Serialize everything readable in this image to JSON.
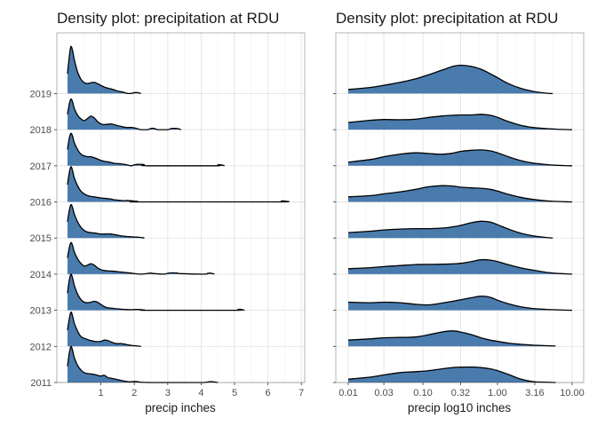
{
  "chart_data": [
    {
      "type": "ridgeline",
      "title": "Density plot: precipitation at RDU",
      "xlabel": "precip inches",
      "ylabel": "",
      "x_scale": "linear",
      "xlim": [
        0,
        7
      ],
      "x_ticks": [
        1,
        2,
        3,
        4,
        5,
        6,
        7
      ],
      "x_tick_labels": [
        "1",
        "2",
        "3",
        "4",
        "5",
        "6",
        "7"
      ],
      "categories": [
        "2011",
        "2012",
        "2013",
        "2014",
        "2015",
        "2016",
        "2017",
        "2018",
        "2019"
      ],
      "fill_color": "#4477aa",
      "grid": true,
      "series": [
        {
          "name": "2011",
          "x": [
            0,
            0.05,
            0.1,
            0.15,
            0.2,
            0.3,
            0.4,
            0.5,
            0.6,
            0.7,
            0.8,
            0.9,
            1.0,
            1.1,
            1.2,
            1.3,
            1.4,
            1.5,
            1.6,
            1.7,
            1.8,
            1.9,
            2.0,
            2.1,
            2.2,
            2.5,
            3.0,
            4.0,
            4.2,
            4.3,
            4.4,
            4.5
          ],
          "density": [
            0.9,
            1.6,
            2.0,
            1.8,
            1.4,
            0.95,
            0.7,
            0.55,
            0.5,
            0.48,
            0.45,
            0.4,
            0.36,
            0.4,
            0.28,
            0.24,
            0.2,
            0.16,
            0.12,
            0.08,
            0.05,
            0.04,
            0.06,
            0.05,
            0.02,
            0.0,
            0.0,
            0.0,
            0.03,
            0.05,
            0.03,
            0.0
          ]
        },
        {
          "name": "2012",
          "x": [
            0,
            0.05,
            0.1,
            0.15,
            0.2,
            0.3,
            0.4,
            0.5,
            0.6,
            0.7,
            0.8,
            0.9,
            1.0,
            1.1,
            1.2,
            1.3,
            1.4,
            1.5,
            1.6,
            1.7,
            1.8,
            1.9,
            2.0,
            2.1,
            2.2
          ],
          "density": [
            0.9,
            1.5,
            1.9,
            1.7,
            1.3,
            0.85,
            0.55,
            0.45,
            0.38,
            0.32,
            0.28,
            0.26,
            0.28,
            0.35,
            0.33,
            0.25,
            0.18,
            0.15,
            0.16,
            0.13,
            0.09,
            0.06,
            0.04,
            0.02,
            0.0
          ]
        },
        {
          "name": "2013",
          "x": [
            0,
            0.05,
            0.1,
            0.15,
            0.2,
            0.3,
            0.4,
            0.5,
            0.6,
            0.7,
            0.8,
            0.9,
            1.0,
            1.1,
            1.2,
            1.3,
            1.4,
            1.5,
            1.6,
            1.7,
            1.8,
            1.9,
            2.0,
            2.1,
            2.2,
            2.3,
            2.4,
            5.0,
            5.1,
            5.2,
            5.3
          ],
          "density": [
            0.95,
            1.65,
            2.0,
            1.8,
            1.4,
            0.9,
            0.6,
            0.45,
            0.42,
            0.45,
            0.5,
            0.45,
            0.32,
            0.2,
            0.14,
            0.12,
            0.1,
            0.08,
            0.06,
            0.05,
            0.04,
            0.03,
            0.04,
            0.05,
            0.03,
            0.02,
            0.0,
            0.0,
            0.05,
            0.05,
            0.0
          ]
        },
        {
          "name": "2014",
          "x": [
            0,
            0.05,
            0.1,
            0.15,
            0.2,
            0.3,
            0.4,
            0.5,
            0.6,
            0.7,
            0.8,
            0.9,
            1.0,
            1.1,
            1.2,
            1.3,
            1.4,
            1.5,
            1.6,
            1.7,
            1.8,
            1.9,
            2.0,
            2.2,
            2.4,
            2.5,
            2.6,
            2.9,
            3.0,
            3.1,
            3.2,
            3.3,
            3.4,
            4.1,
            4.2,
            4.3,
            4.4
          ],
          "density": [
            0.9,
            1.45,
            1.75,
            1.6,
            1.25,
            0.85,
            0.6,
            0.45,
            0.5,
            0.58,
            0.5,
            0.35,
            0.25,
            0.2,
            0.18,
            0.17,
            0.16,
            0.14,
            0.12,
            0.1,
            0.08,
            0.06,
            0.03,
            0.0,
            0.04,
            0.06,
            0.03,
            0.0,
            0.05,
            0.07,
            0.07,
            0.06,
            0.03,
            0.0,
            0.05,
            0.05,
            0.0
          ]
        },
        {
          "name": "2015",
          "x": [
            0,
            0.05,
            0.1,
            0.15,
            0.2,
            0.3,
            0.4,
            0.5,
            0.6,
            0.7,
            0.8,
            0.9,
            1.0,
            1.1,
            1.2,
            1.3,
            1.4,
            1.5,
            1.6,
            1.7,
            1.8,
            1.9,
            2.0,
            2.1,
            2.2,
            2.3
          ],
          "density": [
            0.9,
            1.5,
            1.85,
            1.7,
            1.35,
            0.9,
            0.6,
            0.42,
            0.33,
            0.3,
            0.28,
            0.25,
            0.22,
            0.22,
            0.23,
            0.22,
            0.19,
            0.16,
            0.12,
            0.1,
            0.08,
            0.07,
            0.06,
            0.05,
            0.03,
            0.0
          ]
        },
        {
          "name": "2016",
          "x": [
            0,
            0.05,
            0.1,
            0.15,
            0.2,
            0.3,
            0.4,
            0.5,
            0.6,
            0.7,
            0.8,
            0.9,
            1.0,
            1.1,
            1.2,
            1.3,
            1.4,
            1.5,
            1.6,
            1.7,
            1.8,
            1.9,
            2.0,
            2.1,
            2.2,
            6.3,
            6.4,
            6.5,
            6.6
          ],
          "density": [
            0.95,
            1.6,
            1.95,
            1.75,
            1.35,
            0.9,
            0.6,
            0.45,
            0.35,
            0.3,
            0.28,
            0.25,
            0.22,
            0.2,
            0.18,
            0.16,
            0.12,
            0.1,
            0.08,
            0.07,
            0.08,
            0.07,
            0.05,
            0.03,
            0.0,
            0.0,
            0.05,
            0.05,
            0.0
          ]
        },
        {
          "name": "2017",
          "x": [
            0,
            0.05,
            0.1,
            0.15,
            0.2,
            0.3,
            0.4,
            0.5,
            0.6,
            0.7,
            0.8,
            0.9,
            1.0,
            1.1,
            1.2,
            1.3,
            1.4,
            1.5,
            1.6,
            1.7,
            1.8,
            1.9,
            2.0,
            2.1,
            2.2,
            2.3,
            2.4,
            4.4,
            4.5,
            4.6,
            4.7
          ],
          "density": [
            0.9,
            1.5,
            1.8,
            1.65,
            1.3,
            0.9,
            0.65,
            0.55,
            0.5,
            0.5,
            0.45,
            0.38,
            0.3,
            0.25,
            0.22,
            0.18,
            0.14,
            0.12,
            0.11,
            0.08,
            0.04,
            0.0,
            0.05,
            0.08,
            0.08,
            0.06,
            0.0,
            0.0,
            0.05,
            0.05,
            0.0
          ]
        },
        {
          "name": "2018",
          "x": [
            0,
            0.05,
            0.1,
            0.15,
            0.2,
            0.3,
            0.4,
            0.5,
            0.6,
            0.7,
            0.8,
            0.9,
            1.0,
            1.1,
            1.2,
            1.3,
            1.4,
            1.5,
            1.6,
            1.7,
            1.8,
            1.9,
            2.0,
            2.1,
            2.2,
            2.4,
            2.5,
            2.6,
            2.7,
            3.0,
            3.1,
            3.2,
            3.3,
            3.4
          ],
          "density": [
            0.85,
            1.4,
            1.7,
            1.55,
            1.2,
            0.8,
            0.6,
            0.5,
            0.62,
            0.75,
            0.65,
            0.45,
            0.32,
            0.28,
            0.3,
            0.32,
            0.28,
            0.22,
            0.18,
            0.14,
            0.12,
            0.13,
            0.1,
            0.05,
            0.0,
            0.0,
            0.07,
            0.07,
            0.0,
            0.0,
            0.06,
            0.07,
            0.06,
            0.0
          ]
        },
        {
          "name": "2019",
          "x": [
            0,
            0.05,
            0.1,
            0.15,
            0.2,
            0.3,
            0.4,
            0.5,
            0.6,
            0.7,
            0.8,
            0.9,
            1.0,
            1.1,
            1.2,
            1.3,
            1.4,
            1.5,
            1.6,
            1.7,
            1.8,
            1.9,
            2.0,
            2.1,
            2.2
          ],
          "density": [
            1.1,
            2.0,
            2.6,
            2.4,
            1.9,
            1.2,
            0.8,
            0.6,
            0.55,
            0.6,
            0.62,
            0.55,
            0.45,
            0.36,
            0.3,
            0.26,
            0.2,
            0.14,
            0.1,
            0.06,
            0.0,
            0.0,
            0.05,
            0.05,
            0.0
          ]
        }
      ]
    },
    {
      "type": "ridgeline",
      "title": "Density plot: precipitation at RDU",
      "xlabel": "precip log10 inches",
      "ylabel": "",
      "x_scale": "log10",
      "xlim": [
        0.01,
        10
      ],
      "x_ticks": [
        0.01,
        0.03,
        0.1,
        0.32,
        1,
        3.16,
        10
      ],
      "x_tick_labels": [
        "0.01",
        "0.03",
        "0.10",
        "0.32",
        "1.00",
        "3.16",
        "10.00"
      ],
      "categories": [
        "2011",
        "2012",
        "2013",
        "2014",
        "2015",
        "2016",
        "2017",
        "2018",
        "2019"
      ],
      "fill_color": "#4477aa",
      "grid": true,
      "series": [
        {
          "name": "2011",
          "x": [
            0.01,
            0.02,
            0.03,
            0.05,
            0.08,
            0.12,
            0.18,
            0.25,
            0.32,
            0.45,
            0.6,
            0.8,
            1.0,
            1.4,
            2.0,
            3.0,
            4.5,
            6.0
          ],
          "density": [
            0.18,
            0.3,
            0.42,
            0.55,
            0.6,
            0.66,
            0.76,
            0.83,
            0.85,
            0.86,
            0.83,
            0.76,
            0.66,
            0.45,
            0.2,
            0.05,
            0.02,
            0.0
          ]
        },
        {
          "name": "2012",
          "x": [
            0.01,
            0.02,
            0.03,
            0.05,
            0.08,
            0.12,
            0.18,
            0.25,
            0.32,
            0.45,
            0.6,
            0.8,
            1.0,
            1.4,
            2.0,
            3.0,
            4.5,
            6.0
          ],
          "density": [
            0.35,
            0.42,
            0.48,
            0.5,
            0.52,
            0.65,
            0.8,
            0.86,
            0.8,
            0.65,
            0.48,
            0.35,
            0.28,
            0.18,
            0.12,
            0.07,
            0.04,
            0.02
          ]
        },
        {
          "name": "2013",
          "x": [
            0.01,
            0.02,
            0.03,
            0.05,
            0.08,
            0.12,
            0.18,
            0.25,
            0.32,
            0.45,
            0.6,
            0.8,
            1.0,
            1.4,
            2.0,
            3.0,
            4.5,
            6.0,
            8.0,
            10.0
          ],
          "density": [
            0.45,
            0.42,
            0.45,
            0.42,
            0.33,
            0.3,
            0.4,
            0.5,
            0.58,
            0.7,
            0.78,
            0.72,
            0.56,
            0.36,
            0.2,
            0.1,
            0.05,
            0.03,
            0.01,
            0.0
          ]
        },
        {
          "name": "2014",
          "x": [
            0.01,
            0.02,
            0.03,
            0.05,
            0.08,
            0.12,
            0.18,
            0.25,
            0.32,
            0.45,
            0.6,
            0.8,
            1.0,
            1.4,
            2.0,
            3.0,
            4.5,
            6.0,
            8.0,
            10.0
          ],
          "density": [
            0.3,
            0.36,
            0.42,
            0.48,
            0.53,
            0.54,
            0.55,
            0.57,
            0.6,
            0.7,
            0.8,
            0.78,
            0.7,
            0.52,
            0.36,
            0.22,
            0.1,
            0.05,
            0.02,
            0.0
          ]
        },
        {
          "name": "2015",
          "x": [
            0.01,
            0.02,
            0.03,
            0.05,
            0.08,
            0.12,
            0.18,
            0.25,
            0.32,
            0.45,
            0.6,
            0.8,
            1.0,
            1.4,
            2.0,
            3.0,
            4.5,
            5.5
          ],
          "density": [
            0.3,
            0.38,
            0.45,
            0.5,
            0.52,
            0.52,
            0.55,
            0.62,
            0.7,
            0.85,
            0.93,
            0.88,
            0.74,
            0.5,
            0.28,
            0.12,
            0.03,
            0.0
          ]
        },
        {
          "name": "2016",
          "x": [
            0.01,
            0.02,
            0.03,
            0.05,
            0.08,
            0.12,
            0.18,
            0.25,
            0.32,
            0.45,
            0.6,
            0.8,
            1.0,
            1.4,
            2.0,
            3.0,
            4.5,
            6.0,
            8.0,
            10.0
          ],
          "density": [
            0.28,
            0.35,
            0.45,
            0.56,
            0.7,
            0.84,
            0.9,
            0.88,
            0.82,
            0.78,
            0.76,
            0.7,
            0.6,
            0.42,
            0.26,
            0.14,
            0.06,
            0.03,
            0.01,
            0.0
          ]
        },
        {
          "name": "2017",
          "x": [
            0.01,
            0.02,
            0.03,
            0.05,
            0.08,
            0.12,
            0.18,
            0.25,
            0.32,
            0.45,
            0.6,
            0.8,
            1.0,
            1.4,
            2.0,
            3.0,
            4.5,
            6.0,
            8.0,
            10.0
          ],
          "density": [
            0.2,
            0.35,
            0.5,
            0.65,
            0.72,
            0.68,
            0.64,
            0.7,
            0.8,
            0.86,
            0.88,
            0.83,
            0.72,
            0.5,
            0.3,
            0.15,
            0.07,
            0.03,
            0.01,
            0.0
          ]
        },
        {
          "name": "2018",
          "x": [
            0.01,
            0.02,
            0.03,
            0.05,
            0.08,
            0.12,
            0.18,
            0.25,
            0.32,
            0.45,
            0.6,
            0.8,
            1.0,
            1.4,
            2.0,
            3.0,
            4.5,
            6.0,
            8.0,
            10.0
          ],
          "density": [
            0.4,
            0.52,
            0.56,
            0.55,
            0.58,
            0.68,
            0.76,
            0.8,
            0.82,
            0.82,
            0.85,
            0.8,
            0.68,
            0.45,
            0.25,
            0.12,
            0.06,
            0.03,
            0.01,
            0.0
          ]
        },
        {
          "name": "2019",
          "x": [
            0.01,
            0.02,
            0.03,
            0.05,
            0.08,
            0.12,
            0.18,
            0.25,
            0.32,
            0.45,
            0.6,
            0.8,
            1.0,
            1.4,
            2.0,
            3.0,
            4.5,
            5.5
          ],
          "density": [
            0.22,
            0.34,
            0.46,
            0.62,
            0.82,
            1.05,
            1.3,
            1.5,
            1.57,
            1.5,
            1.35,
            1.1,
            0.88,
            0.55,
            0.3,
            0.12,
            0.02,
            0.0
          ]
        }
      ]
    }
  ]
}
